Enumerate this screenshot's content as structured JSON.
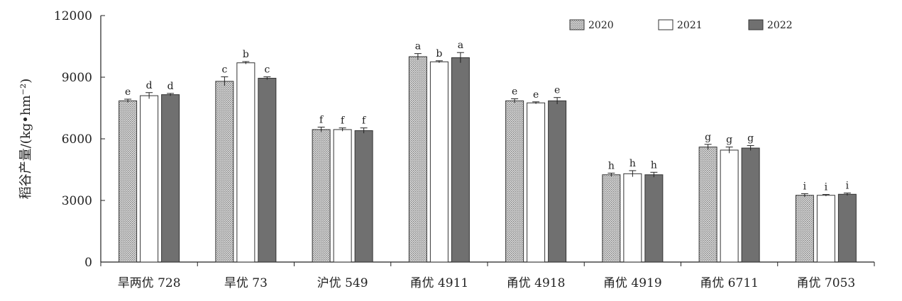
{
  "chart_data": {
    "type": "bar",
    "ylabel": "稻谷产量/(kg•hm⁻²)",
    "ylim": [
      0,
      12000
    ],
    "yticks": [
      0,
      3000,
      6000,
      9000,
      12000
    ],
    "ytick_labels": [
      "0",
      "3000",
      "6000",
      "9000",
      "12000"
    ],
    "categories": [
      "旱两优 728",
      "旱优 73",
      "沪优 549",
      "甬优 4911",
      "甬优 4918",
      "甬优 4919",
      "甬优 6711",
      "甬优 7053"
    ],
    "legend_position": "top-right",
    "grid": false,
    "series": [
      {
        "name": "2020",
        "fill": "pattern",
        "color": "#bdbdbd",
        "values": [
          7850,
          8800,
          6450,
          10000,
          7850,
          4250,
          5600,
          3250
        ],
        "errors": [
          80,
          220,
          120,
          150,
          100,
          80,
          130,
          80
        ],
        "labels": [
          "e",
          "c",
          "f",
          "a",
          "e",
          "h",
          "g",
          "i"
        ]
      },
      {
        "name": "2021",
        "fill": "solid",
        "color": "#ffffff",
        "values": [
          8100,
          9700,
          6450,
          9750,
          7750,
          4300,
          5450,
          3250
        ],
        "errors": [
          150,
          60,
          80,
          50,
          50,
          150,
          150,
          40
        ],
        "labels": [
          "d",
          "b",
          "f",
          "b",
          "e",
          "h",
          "g",
          "i"
        ]
      },
      {
        "name": "2022",
        "fill": "solid",
        "color": "#707070",
        "values": [
          8150,
          8950,
          6400,
          9950,
          7850,
          4250,
          5550,
          3300
        ],
        "errors": [
          60,
          70,
          130,
          250,
          160,
          120,
          120,
          60
        ],
        "labels": [
          "d",
          "c",
          "f",
          "a",
          "e",
          "h",
          "g",
          "i"
        ]
      }
    ]
  }
}
